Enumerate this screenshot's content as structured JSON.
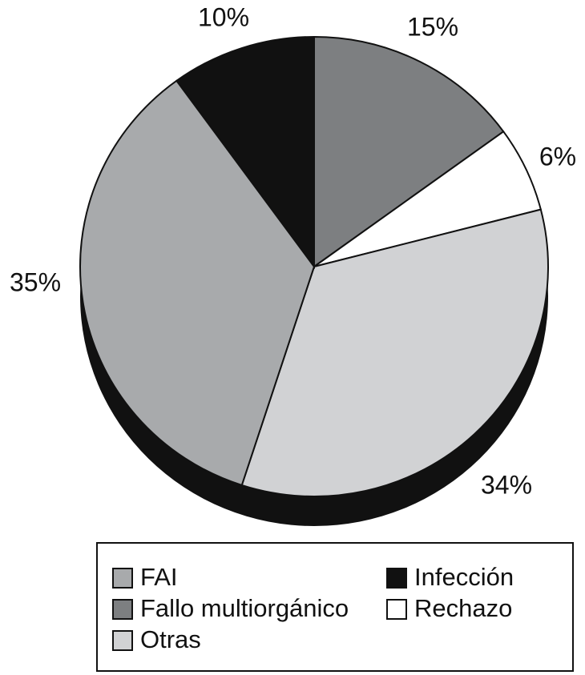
{
  "chart_data": {
    "type": "pie",
    "categories": [
      "Fallo multiorgánico",
      "Rechazo",
      "Otras",
      "FAI",
      "Infección"
    ],
    "values": [
      15,
      6,
      34,
      35,
      10
    ],
    "value_labels": [
      "15%",
      "6%",
      "34%",
      "35%",
      "10%"
    ],
    "colors": [
      "#7d7f81",
      "#ffffff",
      "#d1d2d4",
      "#a8aaac",
      "#111111"
    ]
  }
}
